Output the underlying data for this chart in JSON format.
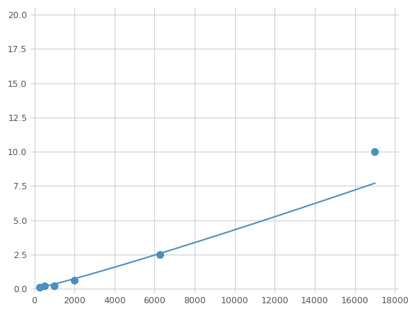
{
  "x_points": [
    250,
    500,
    1000,
    2000,
    6250,
    17000
  ],
  "y_points": [
    0.1,
    0.2,
    0.2,
    0.6,
    2.5,
    10.0
  ],
  "line_color": "#4a8fbd",
  "marker_color": "#4a8fbd",
  "marker_size": 7,
  "xlim": [
    -200,
    18200
  ],
  "ylim": [
    -0.3,
    20.5
  ],
  "xticks": [
    0,
    2000,
    4000,
    6000,
    8000,
    10000,
    12000,
    14000,
    16000,
    18000
  ],
  "yticks": [
    0.0,
    2.5,
    5.0,
    7.5,
    10.0,
    12.5,
    15.0,
    17.5,
    20.0
  ],
  "grid_color": "#c8d0d8",
  "background_color": "#ffffff",
  "figure_background": "#ffffff"
}
